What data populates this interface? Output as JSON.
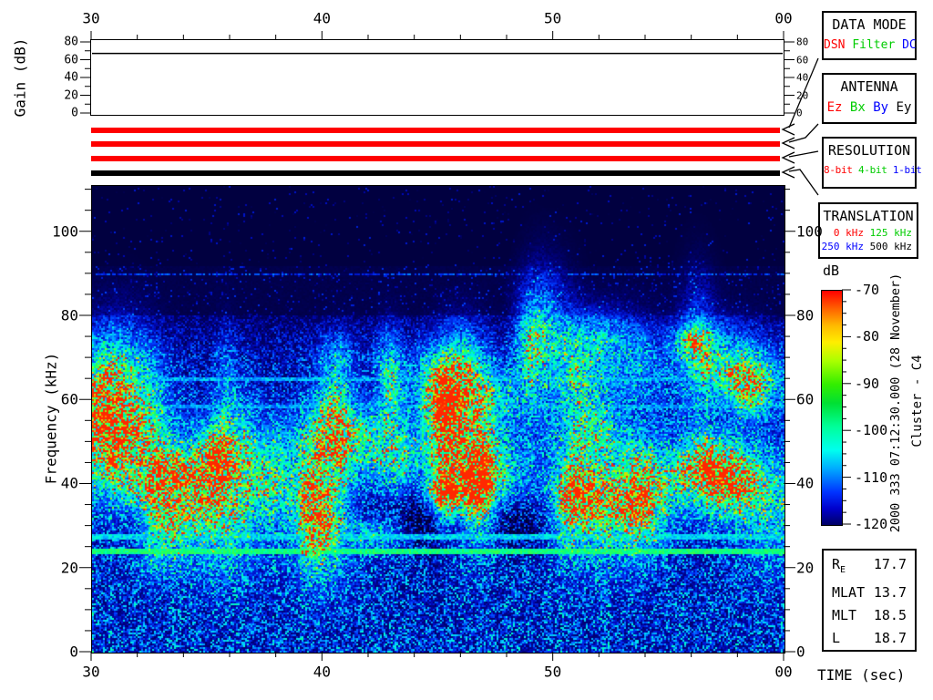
{
  "colors": {
    "red": "#ff0000",
    "green": "#00cc00",
    "blue": "#0000ff",
    "black": "#000000",
    "spec_background": "#01003a"
  },
  "top_plot": {
    "ylabel": "Gain (dB)",
    "yticks": [
      "0",
      "20",
      "40",
      "60",
      "80"
    ],
    "gain_line_db": 70
  },
  "time_axis": {
    "label": "TIME (sec)",
    "ticks": [
      "30",
      "40",
      "50",
      "00"
    ]
  },
  "spectrogram": {
    "ylabel": "Frequency (kHz)",
    "yticks": [
      "0",
      "20",
      "40",
      "60",
      "80",
      "100"
    ]
  },
  "colorbar": {
    "label": "dB",
    "ticks": [
      "-70",
      "-80",
      "-90",
      "-100",
      "-110",
      "-120"
    ],
    "stops": [
      {
        "p": 0,
        "c": "#ff0000"
      },
      {
        "p": 8,
        "c": "#ff6600"
      },
      {
        "p": 15,
        "c": "#ffbb00"
      },
      {
        "p": 22,
        "c": "#ffee00"
      },
      {
        "p": 30,
        "c": "#aaff00"
      },
      {
        "p": 40,
        "c": "#33ee00"
      },
      {
        "p": 48,
        "c": "#00e033"
      },
      {
        "p": 58,
        "c": "#00ff99"
      },
      {
        "p": 68,
        "c": "#00ffee"
      },
      {
        "p": 76,
        "c": "#00aaff"
      },
      {
        "p": 86,
        "c": "#0033ff"
      },
      {
        "p": 93,
        "c": "#0000cc"
      },
      {
        "p": 100,
        "c": "#000066"
      }
    ]
  },
  "side_text": {
    "timestamp": "2000 333 07:12:30.000 (28 November)",
    "spacecraft": "Cluster - C4"
  },
  "boxes": {
    "data_mode": {
      "title": "DATA MODE",
      "items": [
        {
          "label": "DSN",
          "color": "#ff0000"
        },
        {
          "label": "Filter",
          "color": "#00cc00"
        },
        {
          "label": "DC",
          "color": "#0000ff"
        }
      ]
    },
    "antenna": {
      "title": "ANTENNA",
      "items": [
        {
          "label": "Ez",
          "color": "#ff0000"
        },
        {
          "label": "Bx",
          "color": "#00cc00"
        },
        {
          "label": "By",
          "color": "#0000ff"
        },
        {
          "label": "Ey",
          "color": "#000000"
        }
      ]
    },
    "resolution": {
      "title": "RESOLUTION",
      "items": [
        {
          "label": "8-bit",
          "color": "#ff0000"
        },
        {
          "label": "4-bit",
          "color": "#00cc00"
        },
        {
          "label": "1-bit",
          "color": "#0000ff"
        }
      ]
    },
    "translation": {
      "title": "TRANSLATION",
      "row1": [
        {
          "label": "0 kHz",
          "color": "#ff0000"
        },
        {
          "label": "125 kHz",
          "color": "#00cc00"
        }
      ],
      "row2": [
        {
          "label": "250 kHz",
          "color": "#0000ff"
        },
        {
          "label": "500 kHz",
          "color": "#000000"
        }
      ]
    }
  },
  "status_bars": [
    {
      "name": "data-mode-bar",
      "color": "#ff0000"
    },
    {
      "name": "antenna-bar",
      "color": "#ff0000"
    },
    {
      "name": "resolution-bar",
      "color": "#ff0000"
    },
    {
      "name": "translation-bar",
      "color": "#000000"
    }
  ],
  "params_box": {
    "rows": [
      {
        "label": "R",
        "sub": "E",
        "value": "17.7"
      },
      {
        "label": "MLAT",
        "sub": "",
        "value": "13.7"
      },
      {
        "label": "MLT",
        "sub": "",
        "value": "18.5"
      },
      {
        "label": "L",
        "sub": "",
        "value": "18.7"
      }
    ]
  },
  "chart_data": [
    {
      "type": "line",
      "title": "Receiver gain vs time",
      "ylabel": "Gain (dB)",
      "ylim": [
        0,
        80
      ],
      "yticks": [
        0,
        20,
        40,
        60,
        80
      ],
      "x_sec": [
        30,
        60
      ],
      "series": [
        {
          "name": "gain",
          "values": [
            70,
            70
          ]
        }
      ],
      "note": "flat gain line at ~70 dB across the whole 30 s interval"
    },
    {
      "type": "heatmap",
      "title": "Cluster C4 WBD wideband spectrogram",
      "xlabel": "TIME (sec)",
      "ylabel": "Frequency (kHz)",
      "xlim_sec": [
        30,
        60
      ],
      "xticks_sec": [
        30,
        40,
        50,
        60
      ],
      "xtick_labels": [
        "30",
        "40",
        "50",
        "00"
      ],
      "minor_xtick_step_sec": 2,
      "ylim_khz": [
        0,
        111
      ],
      "yticks_khz": [
        0,
        20,
        40,
        60,
        80,
        100
      ],
      "minor_ytick_step_khz": 5,
      "color_scale_db": [
        -120,
        -70
      ],
      "colorbar_ticks_db": [
        -70,
        -80,
        -90,
        -100,
        -110,
        -120
      ],
      "start_time": "2000 333 07:12:30.000 (28 November)",
      "features": {
        "background_level_db": -120,
        "noise_band": {
          "freq_range_khz": [
            0,
            80
          ],
          "typical_level_db": [
            -112,
            -102
          ]
        },
        "bursty_emissions": {
          "freq_range_khz": [
            28,
            78
          ],
          "peak_level_db": -88,
          "description": "patchy chorus-like bursts recurring every few seconds throughout the interval"
        },
        "spectral_lines": [
          {
            "freq_khz": 90,
            "level_db": -113,
            "style": "faint speckled blue"
          },
          {
            "freq_khz": 65,
            "level_db": -105,
            "style": "speckled cyan"
          },
          {
            "freq_khz": 58.5,
            "level_db": -106,
            "style": "speckled cyan"
          },
          {
            "freq_khz": 27.6,
            "level_db": -100,
            "style": "dashed pale cyan"
          },
          {
            "freq_khz": 24,
            "level_db": -92,
            "style": "solid bright green"
          }
        ]
      }
    }
  ]
}
